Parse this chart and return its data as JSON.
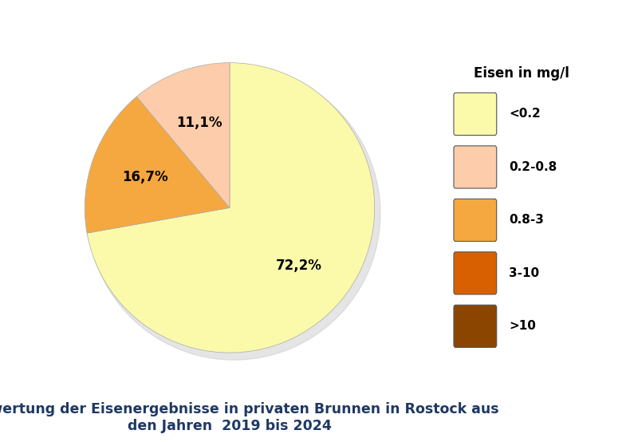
{
  "slices": [
    72.2,
    16.7,
    11.1
  ],
  "labels_all": [
    "<0.2",
    "0.2-0.8",
    "0.8-3",
    "3-10",
    ">10"
  ],
  "colors_all": [
    "#FAFAAA",
    "#FDCCAA",
    "#F5A840",
    "#D96000",
    "#8B4500"
  ],
  "colors_pie": [
    "#FAFAAA",
    "#F5A840",
    "#FDCCAA"
  ],
  "autopct_labels": [
    "72,2%",
    "16,7%",
    "11,1%"
  ],
  "legend_title": "Eisen in mg/l",
  "title_line1": "Auswertung der Eisenergebnisse in privaten Brunnen in Rostock aus",
  "title_line2": "den Jahren  2019 bis 2024",
  "title_color": "#1F3864",
  "title_fontsize": 12.5,
  "legend_fontsize": 11,
  "legend_title_fontsize": 12,
  "autopct_fontsize": 12,
  "background_color": "#ffffff",
  "pie_edge_color": "#aaaaaa",
  "pie_edge_width": 0.5,
  "startangle": 90,
  "shadow_color": "#cccccc"
}
